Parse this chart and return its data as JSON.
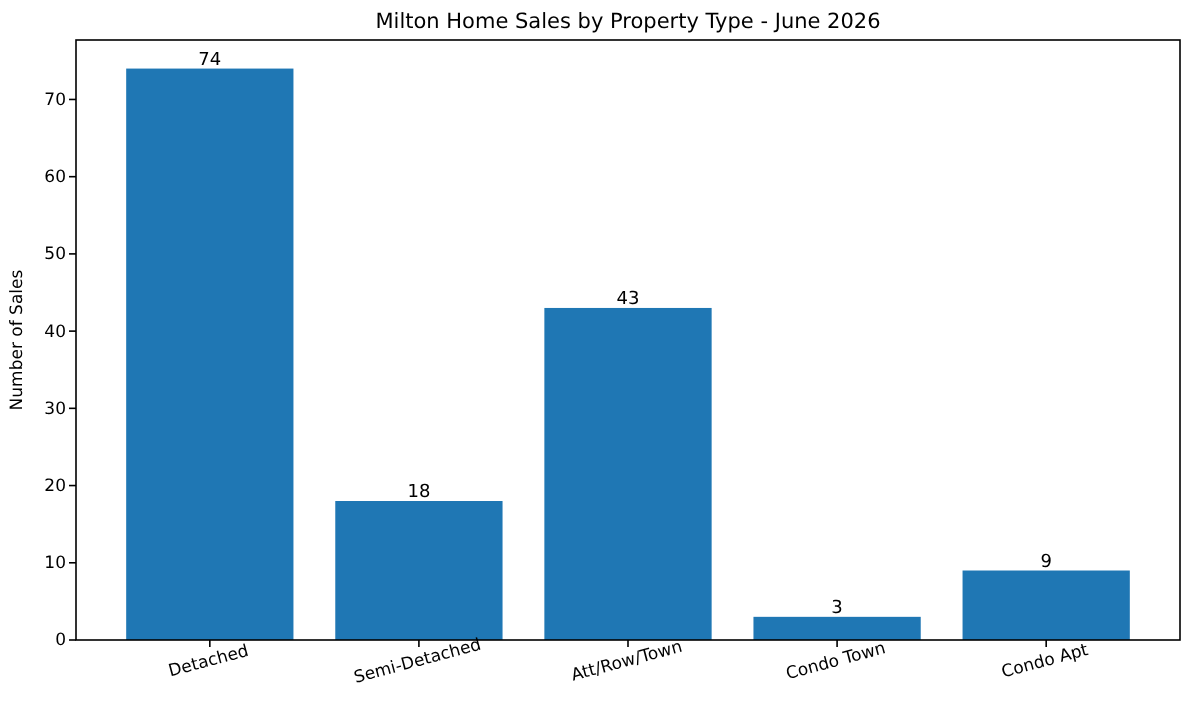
{
  "chart_data": {
    "type": "bar",
    "title": "Milton Home Sales by Property Type - June 2026",
    "ylabel": "Number of Sales",
    "categories": [
      "Detached",
      "Semi-Detached",
      "Att/Row/Town",
      "Condo Town",
      "Condo Apt"
    ],
    "values": [
      74,
      18,
      43,
      3,
      9
    ],
    "color": "#1f77b4",
    "ylim": [
      0,
      77.7
    ],
    "yticks": [
      0,
      10,
      20,
      30,
      40,
      50,
      60,
      70
    ],
    "grid": false,
    "data_labels": true
  }
}
